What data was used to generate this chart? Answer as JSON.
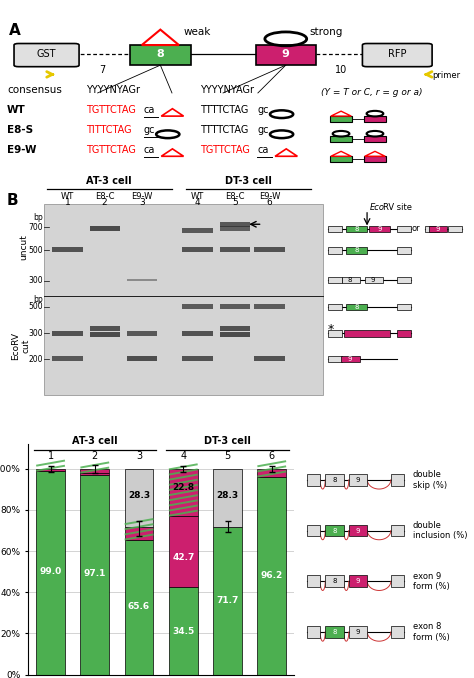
{
  "exon8_color": "#4caf50",
  "exon9_color": "#cc1f6e",
  "gray_color": "#cccccc",
  "panel_B_bar": {
    "double_skip": [
      0.0,
      0.0,
      28.3,
      0.0,
      28.3,
      0.0
    ],
    "double_inclusion": [
      1.0,
      1.9,
      6.1,
      22.8,
      0.0,
      3.8
    ],
    "exon9_form": [
      0.0,
      1.0,
      0.0,
      34.5,
      0.0,
      0.0
    ],
    "exon8_form": [
      99.0,
      97.1,
      65.6,
      42.7,
      71.7,
      96.2
    ]
  }
}
